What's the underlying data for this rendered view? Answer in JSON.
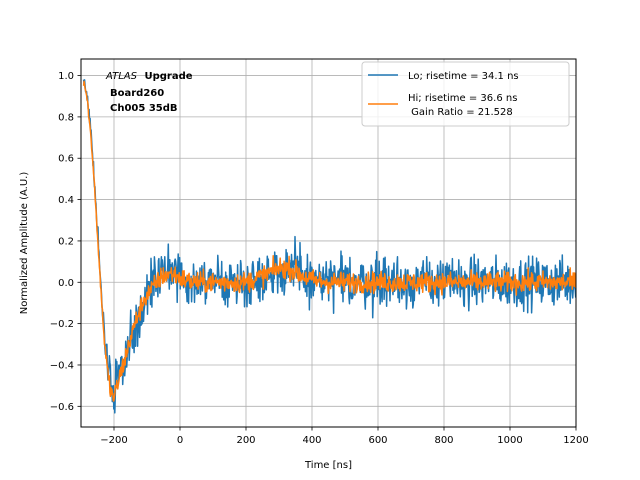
{
  "chart_data": {
    "type": "line",
    "xlabel": "Time [ns]",
    "ylabel": "Normalized Amplitude (A.U.)",
    "xlim": [
      -300,
      1200
    ],
    "ylim": [
      -0.7,
      1.08
    ],
    "xticks": [
      -200,
      0,
      200,
      400,
      600,
      800,
      1000,
      1200
    ],
    "yticks": [
      -0.6,
      -0.4,
      -0.2,
      0.0,
      0.2,
      0.4,
      0.6,
      0.8,
      1.0
    ],
    "xtick_labels": [
      "−200",
      "0",
      "200",
      "400",
      "600",
      "800",
      "1000",
      "1200"
    ],
    "ytick_labels": [
      "−0.6",
      "−0.4",
      "−0.2",
      "0.0",
      "0.2",
      "0.4",
      "0.6",
      "0.8",
      "1.0"
    ],
    "grid": true,
    "legend_position": "top-right",
    "annotation": {
      "italic": "ATLAS",
      "bold": "Upgrade",
      "line2": "Board260",
      "line3": "Ch005 35dB"
    },
    "series": [
      {
        "name": "Lo; risetime = 34.1 ns",
        "color": "#1f77b4",
        "noise": 0.06,
        "x": [
          -290,
          -280,
          -270,
          -260,
          -250,
          -240,
          -230,
          -220,
          -210,
          -200,
          -190,
          -180,
          -170,
          -160,
          -150,
          -140,
          -130,
          -120,
          -110,
          -100,
          -90,
          -80,
          -70,
          -60,
          -50,
          -40,
          -30,
          -20,
          -10,
          0,
          20,
          40,
          60,
          80,
          100,
          150,
          200,
          250,
          300,
          330,
          360,
          400,
          450,
          500,
          600,
          700,
          800,
          900,
          1000,
          1100,
          1200
        ],
        "y": [
          0.98,
          0.88,
          0.72,
          0.52,
          0.25,
          0.0,
          -0.22,
          -0.4,
          -0.5,
          -0.53,
          -0.47,
          -0.42,
          -0.38,
          -0.33,
          -0.27,
          -0.22,
          -0.18,
          -0.15,
          -0.11,
          -0.08,
          -0.05,
          -0.02,
          0.0,
          0.03,
          0.05,
          0.06,
          0.06,
          0.05,
          0.04,
          0.03,
          0.02,
          0.01,
          0.0,
          0.0,
          0.0,
          0.0,
          0.0,
          0.03,
          0.06,
          0.07,
          0.04,
          0.01,
          0.0,
          0.0,
          0.0,
          0.0,
          0.0,
          0.0,
          0.0,
          0.0,
          0.0
        ]
      },
      {
        "name": "Hi; risetime = 36.6 ns\n Gain Ratio = 21.528",
        "color": "#ff7f0e",
        "noise": 0.025,
        "x": [
          -290,
          -280,
          -270,
          -260,
          -250,
          -240,
          -230,
          -220,
          -210,
          -200,
          -190,
          -180,
          -170,
          -160,
          -150,
          -140,
          -130,
          -120,
          -110,
          -100,
          -90,
          -80,
          -70,
          -60,
          -50,
          -40,
          -30,
          -20,
          -10,
          0,
          20,
          40,
          60,
          80,
          100,
          150,
          200,
          250,
          300,
          330,
          360,
          400,
          450,
          500,
          600,
          700,
          800,
          900,
          1000,
          1100,
          1200
        ],
        "y": [
          0.97,
          0.87,
          0.7,
          0.5,
          0.22,
          -0.03,
          -0.26,
          -0.43,
          -0.53,
          -0.56,
          -0.5,
          -0.44,
          -0.39,
          -0.33,
          -0.27,
          -0.22,
          -0.17,
          -0.13,
          -0.09,
          -0.06,
          -0.04,
          -0.02,
          0.0,
          0.02,
          0.03,
          0.04,
          0.04,
          0.04,
          0.03,
          0.02,
          0.01,
          0.0,
          0.0,
          0.0,
          0.0,
          0.0,
          0.0,
          0.03,
          0.07,
          0.07,
          0.04,
          0.01,
          0.0,
          0.0,
          0.0,
          0.0,
          0.0,
          0.0,
          0.0,
          0.0,
          0.0
        ]
      }
    ]
  }
}
